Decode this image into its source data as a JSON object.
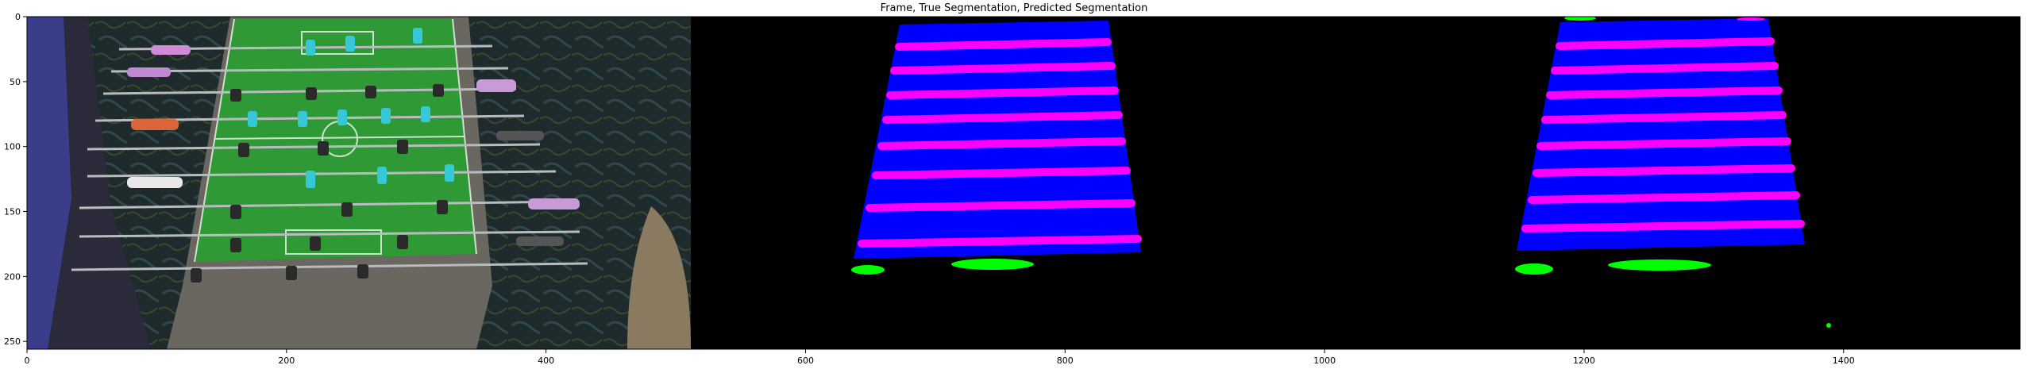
{
  "figure": {
    "title": "Frame, True Segmentation, Predicted Segmentation"
  },
  "axes": {
    "xlim": [
      0,
      1536
    ],
    "ylim": [
      256,
      0
    ],
    "x_ticks": [
      0,
      200,
      400,
      600,
      800,
      1000,
      1200,
      1400
    ],
    "y_ticks": [
      0,
      50,
      100,
      150,
      200,
      250
    ]
  },
  "colors": {
    "rods": "#0000ff",
    "figures": "#ff00ff",
    "goals": "#00ff00",
    "background": "#000000",
    "field": "#2f9a35",
    "table_wood": "#6a6660"
  }
}
